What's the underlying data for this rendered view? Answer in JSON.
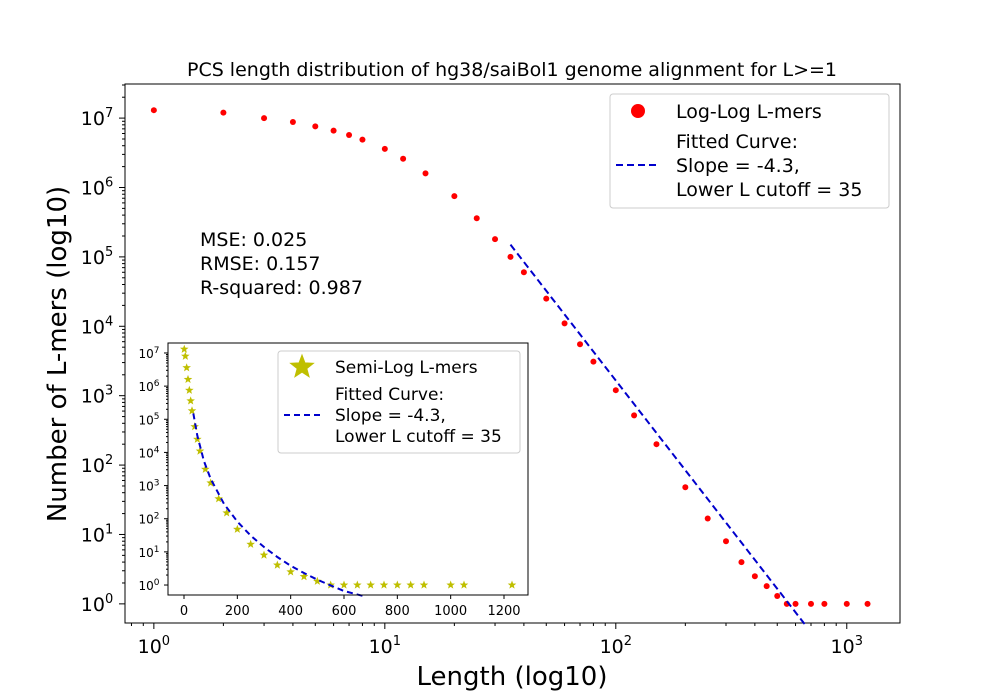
{
  "chart_data": [
    {
      "id": "main",
      "type": "scatter",
      "title": "PCS length distribution of hg38/saiBol1 genome alignment for L>=1",
      "xlabel": "Length (log10)",
      "ylabel": "Number of L-mers (log10)",
      "xscale": "log",
      "yscale": "log",
      "xlim": [
        0.75,
        1700
      ],
      "ylim": [
        0.53,
        31000000
      ],
      "xticks": [
        1,
        10,
        100,
        1000
      ],
      "xtick_labels": [
        {
          "base": "10",
          "exp": "0"
        },
        {
          "base": "10",
          "exp": "1"
        },
        {
          "base": "10",
          "exp": "2"
        },
        {
          "base": "10",
          "exp": "3"
        }
      ],
      "yticks": [
        1,
        10,
        100,
        1000,
        10000,
        100000,
        1000000,
        10000000
      ],
      "ytick_labels": [
        {
          "base": "10",
          "exp": "0"
        },
        {
          "base": "10",
          "exp": "1"
        },
        {
          "base": "10",
          "exp": "2"
        },
        {
          "base": "10",
          "exp": "3"
        },
        {
          "base": "10",
          "exp": "4"
        },
        {
          "base": "10",
          "exp": "5"
        },
        {
          "base": "10",
          "exp": "6"
        },
        {
          "base": "10",
          "exp": "7"
        }
      ],
      "grid": false,
      "legend_position": "top-right",
      "series": [
        {
          "name": "Log-Log L-mers",
          "kind": "points",
          "marker": "circle",
          "color": "#ff0000",
          "x": [
            1,
            2,
            3,
            4,
            5,
            6,
            7,
            8,
            10,
            12,
            15,
            20,
            25,
            30,
            35,
            40,
            50,
            60,
            70,
            80,
            100,
            120,
            150,
            200,
            250,
            300,
            350,
            400,
            450,
            500,
            550,
            600,
            700,
            800,
            1000,
            1230
          ],
          "y": [
            13000000,
            12000000,
            10000000,
            8800000,
            7600000,
            6600000,
            5700000,
            4900000,
            3600000,
            2600000,
            1600000,
            750000,
            360000,
            180000,
            100000,
            60000,
            25000,
            11000,
            5500,
            3100,
            1200,
            520,
            200,
            48,
            17,
            8,
            4,
            2.5,
            1.8,
            1.3,
            1,
            1,
            1,
            1,
            1,
            1
          ]
        },
        {
          "name": "Fitted Curve:\nSlope = -4.3,\nLower L cutoff = 35",
          "kind": "dashed-line",
          "color": "#0000cc",
          "x": [
            35,
            670
          ],
          "y": [
            150000,
            0.47
          ]
        }
      ],
      "annotations": [
        "MSE: 0.025",
        "RMSE: 0.157",
        "R-squared: 0.987"
      ]
    },
    {
      "id": "inset",
      "type": "scatter",
      "xscale": "linear",
      "yscale": "log",
      "xlim": [
        -60,
        1290
      ],
      "ylim": [
        0.5,
        20000000
      ],
      "xticks": [
        0,
        200,
        400,
        600,
        800,
        1000,
        1200
      ],
      "xtick_labels": [
        "0",
        "200",
        "400",
        "600",
        "800",
        "1000",
        "1200"
      ],
      "yticks": [
        1,
        10,
        100,
        1000,
        10000,
        100000,
        1000000,
        10000000
      ],
      "ytick_labels": [
        {
          "base": "10",
          "exp": "0"
        },
        {
          "base": "10",
          "exp": "1"
        },
        {
          "base": "10",
          "exp": "2"
        },
        {
          "base": "10",
          "exp": "3"
        },
        {
          "base": "10",
          "exp": "4"
        },
        {
          "base": "10",
          "exp": "5"
        },
        {
          "base": "10",
          "exp": "6"
        },
        {
          "base": "10",
          "exp": "7"
        }
      ],
      "grid": false,
      "legend_position": "top-right",
      "series": [
        {
          "name": "Semi-Log L-mers",
          "kind": "points",
          "marker": "star",
          "color": "#bfbf00",
          "x": [
            1,
            5,
            10,
            15,
            20,
            25,
            30,
            40,
            50,
            60,
            80,
            100,
            130,
            160,
            200,
            250,
            300,
            350,
            400,
            450,
            500,
            550,
            600,
            650,
            700,
            750,
            800,
            850,
            900,
            1000,
            1050,
            1230
          ],
          "y": [
            13000000,
            8000000,
            3600000,
            1600000,
            750000,
            360000,
            180000,
            60000,
            25000,
            11000,
            3100,
            1200,
            400,
            150,
            48,
            17,
            8,
            4,
            2.5,
            1.8,
            1.3,
            1,
            1,
            1,
            1,
            1,
            1,
            1,
            1,
            1,
            1,
            1
          ]
        },
        {
          "name": "Fitted Curve:\nSlope = -4.3,\nLower L cutoff = 35",
          "kind": "dashed-line",
          "color": "#0000cc",
          "x": [
            35,
            50,
            75,
            100,
            150,
            200,
            250,
            300,
            350,
            400,
            450,
            500,
            550,
            600,
            670
          ],
          "y": [
            150000,
            32000,
            5400,
            1600,
            280,
            82,
            31,
            14,
            7,
            3.8,
            2.3,
            1.45,
            0.97,
            0.66,
            0.47
          ]
        }
      ]
    }
  ]
}
